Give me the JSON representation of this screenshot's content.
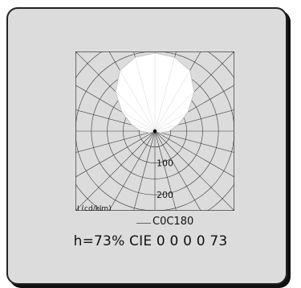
{
  "chart_data": {
    "type": "polar",
    "unit_label": "I (cd/klm)",
    "rings": [
      {
        "value": 100,
        "label": "100"
      },
      {
        "value": 200,
        "label": "200"
      }
    ],
    "r_max": 250,
    "angle_step_deg": 15,
    "series": [
      {
        "name": "C0C180",
        "color": "#ffffff",
        "angles_deg": [
          0,
          15,
          30,
          45,
          60,
          75,
          90,
          105,
          120,
          135,
          150,
          165,
          180
        ],
        "values": [
          245,
          240,
          220,
          175,
          120,
          75,
          45,
          20,
          5,
          0,
          0,
          0,
          0
        ]
      }
    ]
  },
  "legend": {
    "label": "C0C180"
  },
  "footer": {
    "text": "h=73% CIE 0 0 0 0 73"
  }
}
